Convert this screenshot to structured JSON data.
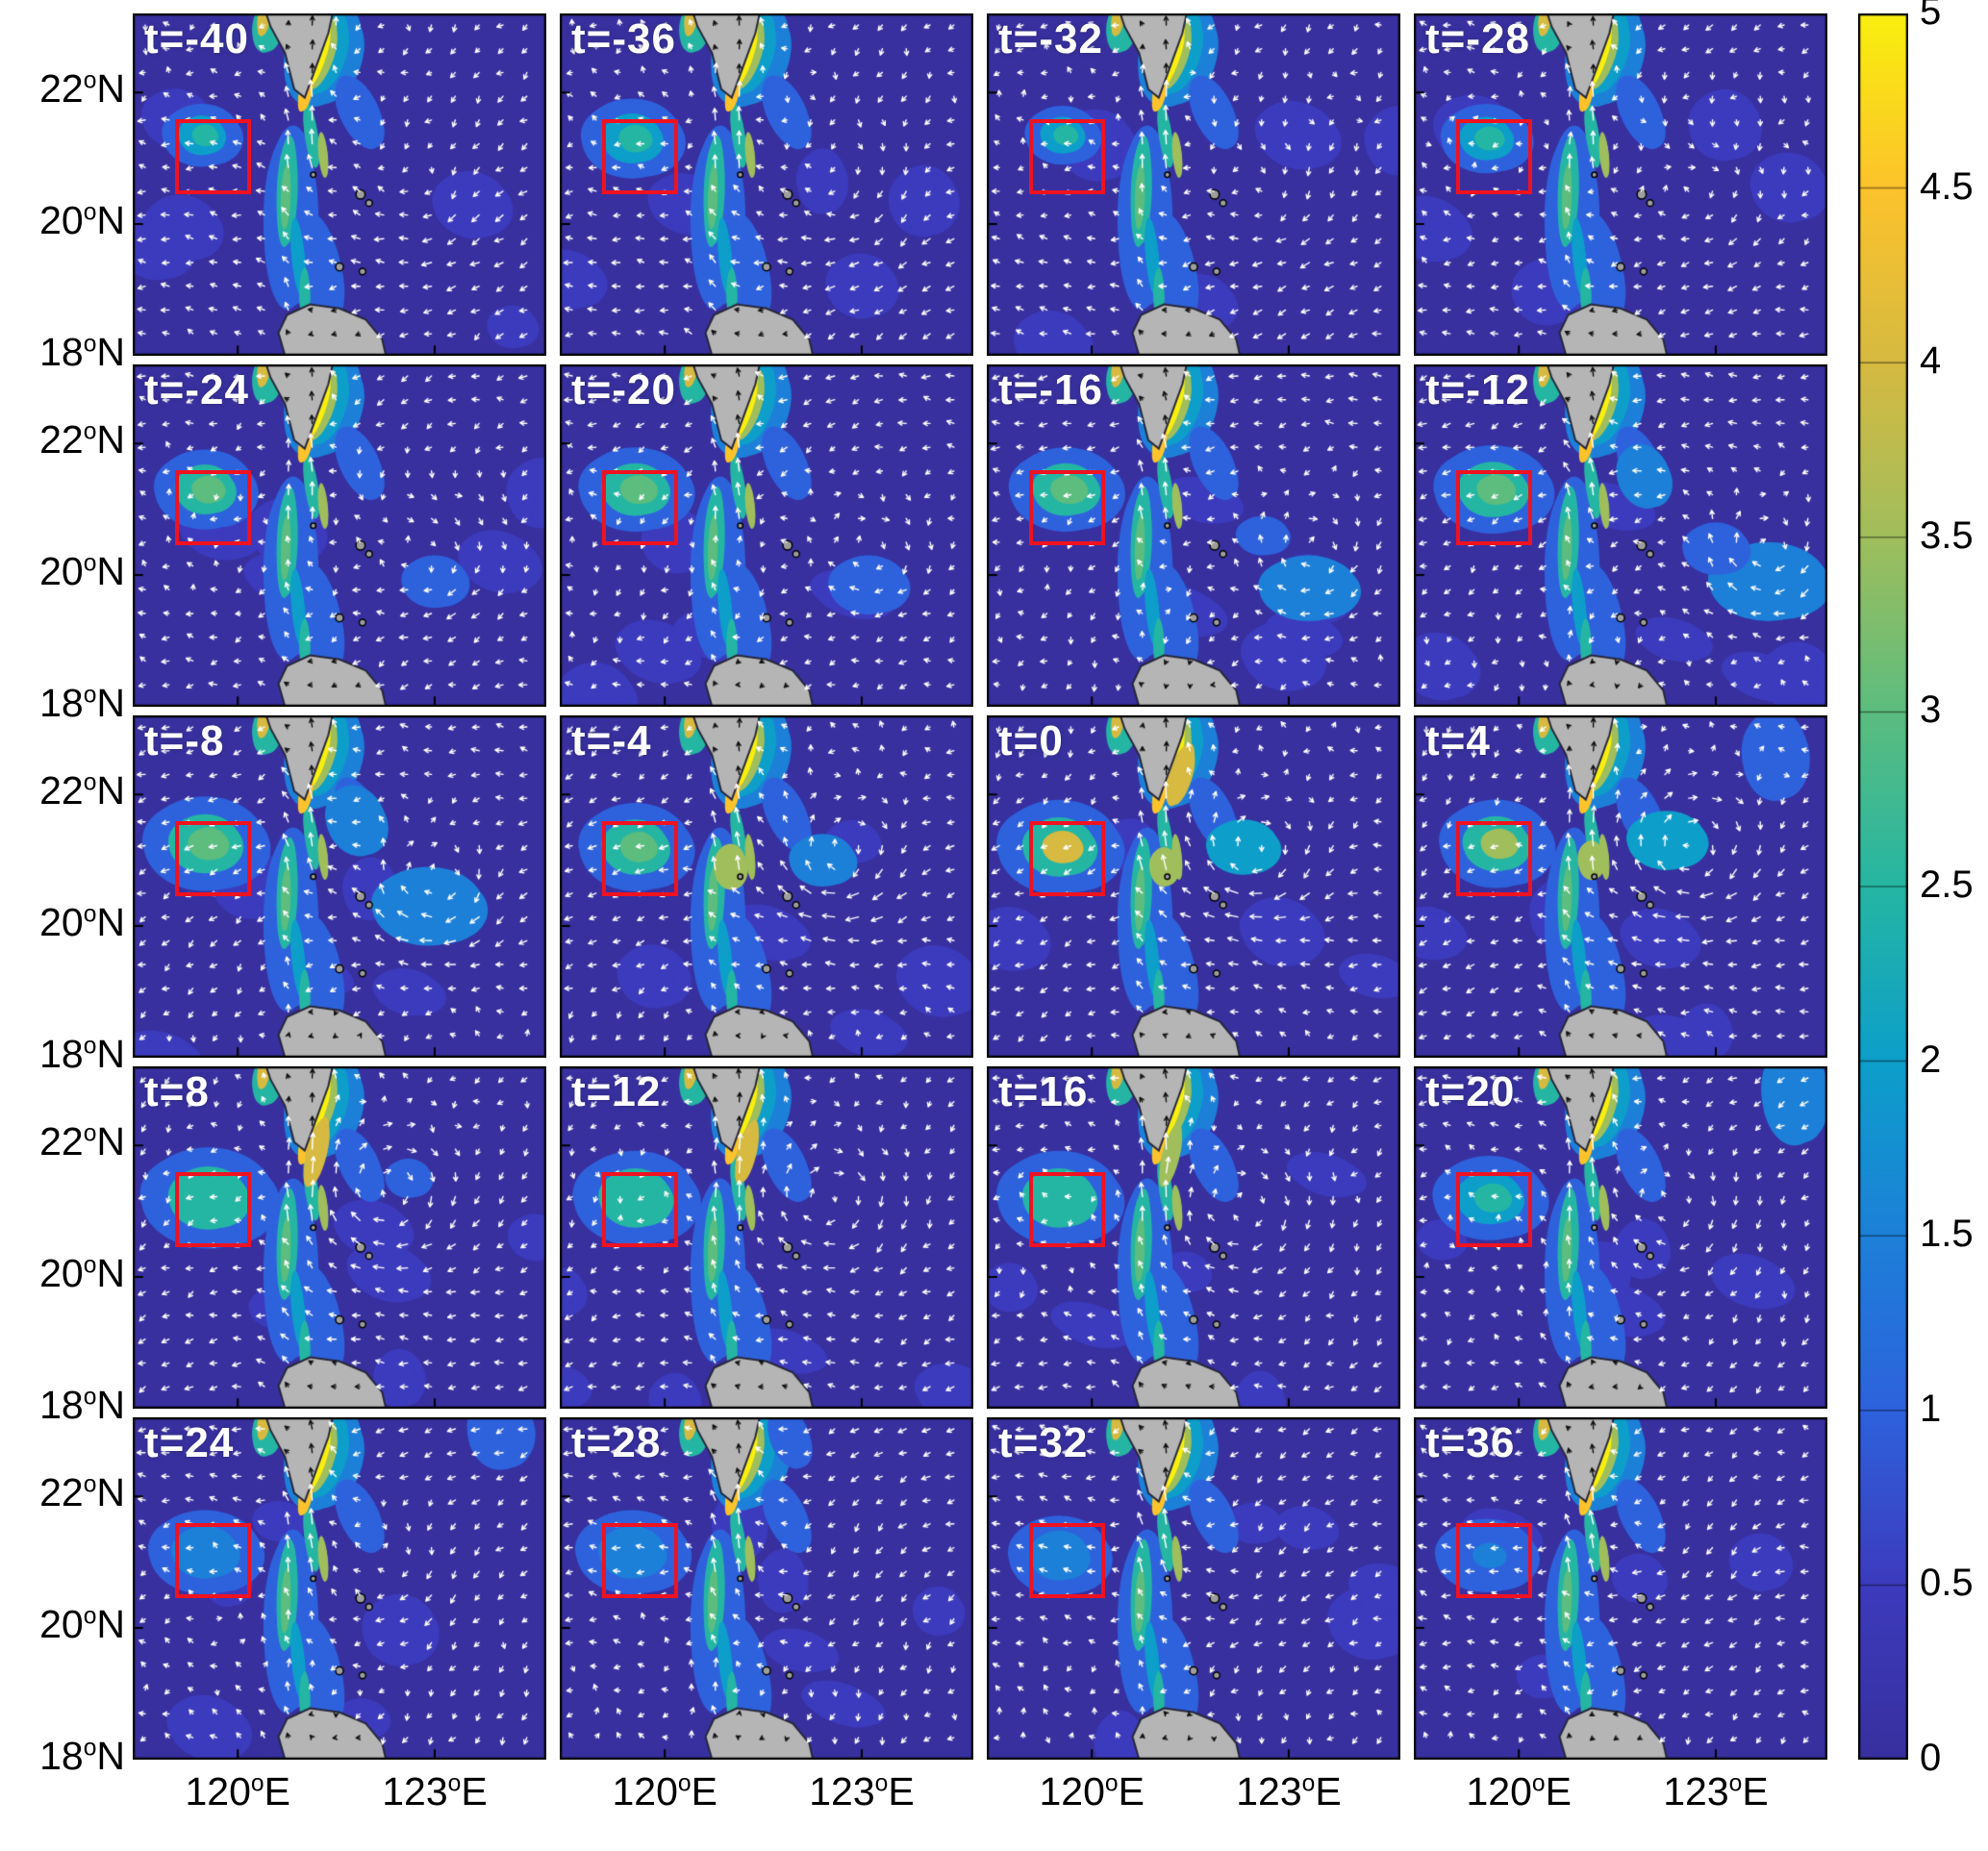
{
  "chart_data": {
    "type": "heatmap",
    "subtype": "map-contour-quiver-grid",
    "title": "",
    "rows": 5,
    "cols": 4,
    "values_estimated": true,
    "time_labels": [
      "t=-40",
      "t=-36",
      "t=-32",
      "t=-28",
      "t=-24",
      "t=-20",
      "t=-16",
      "t=-12",
      "t=-8",
      "t=-4",
      "t=0",
      "t=4",
      "t=8",
      "t=12",
      "t=16",
      "t=20",
      "t=24",
      "t=28",
      "t=32",
      "t=36"
    ],
    "x_ticks": [
      {
        "value": "120",
        "deg": "o",
        "dir": "E",
        "lon": 120
      },
      {
        "value": "123",
        "deg": "o",
        "dir": "E",
        "lon": 123
      }
    ],
    "y_ticks": [
      {
        "value": "22",
        "deg": "o",
        "dir": "N",
        "lat": 22
      },
      {
        "value": "20",
        "deg": "o",
        "dir": "N",
        "lat": 20
      },
      {
        "value": "18",
        "deg": "o",
        "dir": "N",
        "lat": 18
      }
    ],
    "map_extent": {
      "lon_min": 118.4,
      "lon_max": 124.7,
      "lat_min": 18.0,
      "lat_max": 23.2
    },
    "region_box": {
      "lon_min": 119.05,
      "lon_max": 120.2,
      "lat_min": 20.45,
      "lat_max": 21.6,
      "color": "#ef1220"
    },
    "colorbar": {
      "min": 0,
      "max": 5,
      "ticks": [
        "0",
        "0.5",
        "1",
        "1.5",
        "2",
        "2.5",
        "3",
        "3.5",
        "4",
        "4.5",
        "5"
      ],
      "tick_values": [
        0,
        0.5,
        1,
        1.5,
        2,
        2.5,
        3,
        3.5,
        4,
        4.5,
        5
      ],
      "stops": [
        [
          0,
          "#38309f"
        ],
        [
          0.5,
          "#3d3bbd"
        ],
        [
          1,
          "#2e62dd"
        ],
        [
          1.5,
          "#1d80d8"
        ],
        [
          2,
          "#0d9fca"
        ],
        [
          2.5,
          "#25b6a3"
        ],
        [
          3,
          "#5cbd7f"
        ],
        [
          3.5,
          "#a0be5c"
        ],
        [
          4,
          "#d6ba41"
        ],
        [
          4.5,
          "#fcc32c"
        ],
        [
          5,
          "#f9ef0e"
        ]
      ]
    },
    "land_color": "#b5b5b5",
    "land_edge_color": "#26263a",
    "arrow_color": "#ffffff",
    "land_arrow_color": "#111111",
    "land_polygons": {
      "taiwan": [
        [
          120.35,
          23.45
        ],
        [
          121.5,
          23.45
        ],
        [
          121.38,
          22.9
        ],
        [
          121.02,
          21.92
        ],
        [
          120.86,
          22.05
        ],
        [
          120.72,
          22.6
        ],
        [
          120.5,
          23.0
        ]
      ],
      "luzon": [
        [
          120.75,
          17.9
        ],
        [
          120.62,
          18.35
        ],
        [
          120.75,
          18.62
        ],
        [
          121.1,
          18.78
        ],
        [
          121.55,
          18.72
        ],
        [
          121.95,
          18.55
        ],
        [
          122.2,
          18.25
        ],
        [
          122.28,
          17.9
        ]
      ]
    },
    "islands": [
      [
        121.87,
        20.45,
        0.07
      ],
      [
        122.0,
        20.32,
        0.05
      ],
      [
        121.55,
        19.35,
        0.06
      ],
      [
        121.9,
        19.28,
        0.05
      ],
      [
        121.15,
        20.75,
        0.04
      ]
    ],
    "shared_features": [
      [
        120.8,
        20.1,
        0.4,
        1.4,
        2,
        1.1
      ],
      [
        121.25,
        19.35,
        0.32,
        0.85,
        -12,
        1.1
      ],
      [
        121.3,
        22.6,
        0.55,
        0.85,
        20,
        1.3
      ],
      [
        121.85,
        21.7,
        0.3,
        0.6,
        -25,
        1.1
      ],
      [
        120.45,
        23.0,
        0.22,
        0.4,
        10,
        2.3
      ],
      [
        121.28,
        22.62,
        0.34,
        0.7,
        20,
        2.2
      ],
      [
        120.75,
        20.5,
        0.15,
        0.85,
        3,
        2.3
      ],
      [
        120.92,
        19.5,
        0.1,
        0.6,
        -5,
        2.2
      ],
      [
        121.02,
        18.92,
        0.08,
        0.42,
        0,
        2.4
      ],
      [
        121.12,
        21.35,
        0.1,
        0.5,
        -8,
        2.4
      ],
      [
        121.24,
        22.58,
        0.2,
        0.58,
        20,
        3.4
      ],
      [
        120.4,
        23.15,
        0.09,
        0.3,
        10,
        4.2
      ],
      [
        121.3,
        21.05,
        0.07,
        0.35,
        -5,
        3.7
      ],
      [
        120.73,
        20.42,
        0.07,
        0.5,
        3,
        3.1
      ],
      [
        121.21,
        22.55,
        0.11,
        0.52,
        20,
        4.8
      ],
      [
        121.03,
        22.0,
        0.09,
        0.3,
        14,
        4.6
      ]
    ],
    "panels": [
      {
        "t": "t=-40",
        "box": [
          119.45,
          21.35,
          0.35,
          0.3
        ],
        "bv": 2.2,
        "cv": 2.5,
        "vortex": [
          122.8,
          20.3,
          0.35
        ],
        "extra": []
      },
      {
        "t": "t=-36",
        "box": [
          119.5,
          21.3,
          0.45,
          0.38
        ],
        "bv": 2.2,
        "cv": 2.6,
        "vortex": [
          122.8,
          20.3,
          0.35
        ],
        "extra": []
      },
      {
        "t": "t=-32",
        "box": [
          119.55,
          21.35,
          0.33,
          0.28
        ],
        "bv": 2.2,
        "cv": 2.4,
        "vortex": [
          122.9,
          20.3,
          0.35
        ],
        "extra": []
      },
      {
        "t": "t=-28",
        "box": [
          119.5,
          21.3,
          0.4,
          0.33
        ],
        "bv": 2.2,
        "cv": 2.6,
        "vortex": [
          122.9,
          20.3,
          0.4
        ],
        "extra": []
      },
      {
        "t": "t=-24",
        "box": [
          119.5,
          21.3,
          0.45,
          0.38
        ],
        "bv": 2.3,
        "cv": 2.8,
        "vortex": [
          123.0,
          20.2,
          0.5
        ],
        "extra": [
          [
            123.0,
            19.9,
            0.5,
            0.4,
            0,
            1.2
          ]
        ]
      },
      {
        "t": "t=-20",
        "box": [
          119.55,
          21.3,
          0.5,
          0.4
        ],
        "bv": 2.3,
        "cv": 3.0,
        "vortex": [
          123.2,
          20.3,
          0.6
        ],
        "extra": [
          [
            123.1,
            19.85,
            0.6,
            0.45,
            0,
            1.2
          ]
        ]
      },
      {
        "t": "t=-16",
        "box": [
          119.6,
          21.3,
          0.5,
          0.4
        ],
        "bv": 2.3,
        "cv": 3.0,
        "vortex": [
          123.4,
          20.3,
          0.8
        ],
        "extra": [
          [
            123.3,
            19.8,
            0.75,
            0.5,
            0,
            1.3
          ],
          [
            122.6,
            20.6,
            0.4,
            0.3,
            0,
            1.2
          ]
        ]
      },
      {
        "t": "t=-12",
        "box": [
          119.6,
          21.3,
          0.52,
          0.42
        ],
        "bv": 2.4,
        "cv": 3.2,
        "vortex": [
          123.8,
          20.3,
          0.9
        ],
        "extra": [
          [
            123.8,
            19.9,
            0.9,
            0.6,
            0,
            1.4
          ],
          [
            123.0,
            20.4,
            0.5,
            0.4,
            0,
            1.2
          ],
          [
            121.9,
            21.5,
            0.4,
            0.5,
            -20,
            1.3
          ]
        ]
      },
      {
        "t": "t=-8",
        "box": [
          119.5,
          21.25,
          0.55,
          0.45
        ],
        "bv": 2.4,
        "cv": 3.2,
        "vortex": [
          123.0,
          20.5,
          1.0
        ],
        "extra": [
          [
            122.9,
            20.3,
            0.85,
            0.6,
            0,
            1.4
          ],
          [
            121.8,
            21.6,
            0.45,
            0.55,
            -20,
            1.3
          ]
        ]
      },
      {
        "t": "t=-4",
        "box": [
          119.55,
          21.2,
          0.5,
          0.42
        ],
        "bv": 2.4,
        "cv": 3.0,
        "vortex": [
          122.7,
          20.9,
          1.1
        ],
        "extra": [
          [
            122.4,
            21.0,
            0.5,
            0.4,
            0,
            1.3
          ],
          [
            121.0,
            20.9,
            0.25,
            0.35,
            0,
            3.6
          ]
        ]
      },
      {
        "t": "t=0",
        "box": [
          119.5,
          21.2,
          0.55,
          0.45
        ],
        "bv": 2.4,
        "cv": 3.9,
        "vortex": [
          122.5,
          21.0,
          1.1
        ],
        "extra": [
          [
            122.3,
            21.2,
            0.55,
            0.42,
            0,
            2.2
          ],
          [
            121.35,
            22.3,
            0.16,
            0.5,
            18,
            4.0
          ],
          [
            121.1,
            20.9,
            0.22,
            0.3,
            0,
            3.7
          ]
        ]
      },
      {
        "t": "t=4",
        "box": [
          119.65,
          21.25,
          0.5,
          0.42
        ],
        "bv": 2.4,
        "cv": 3.7,
        "vortex": [
          122.6,
          21.1,
          1.1
        ],
        "extra": [
          [
            122.25,
            21.3,
            0.6,
            0.45,
            0,
            2.2
          ],
          [
            121.1,
            21.0,
            0.2,
            0.3,
            0,
            3.6
          ],
          [
            123.9,
            22.6,
            0.5,
            0.7,
            0,
            1.2
          ]
        ]
      },
      {
        "t": "t=8",
        "box": [
          119.55,
          21.2,
          0.6,
          0.48
        ],
        "bv": 2.3,
        "cv": 2.5,
        "vortex": [
          122.3,
          21.2,
          1.0
        ],
        "extra": [
          [
            121.2,
            21.9,
            0.14,
            0.55,
            15,
            3.9
          ],
          [
            122.6,
            21.5,
            0.35,
            0.3,
            0,
            1.2
          ]
        ]
      },
      {
        "t": "t=12",
        "box": [
          119.55,
          21.2,
          0.55,
          0.45
        ],
        "bv": 2.3,
        "cv": 2.4,
        "vortex": [
          122.5,
          21.1,
          0.9
        ],
        "extra": [
          [
            121.25,
            21.9,
            0.13,
            0.5,
            15,
            3.8
          ]
        ]
      },
      {
        "t": "t=16",
        "box": [
          119.5,
          21.2,
          0.55,
          0.45
        ],
        "bv": 2.3,
        "cv": 2.4,
        "vortex": [
          122.3,
          21.0,
          0.8
        ],
        "extra": [
          [
            121.2,
            21.85,
            0.12,
            0.5,
            15,
            3.7
          ]
        ]
      },
      {
        "t": "t=20",
        "box": [
          119.55,
          21.2,
          0.5,
          0.4
        ],
        "bv": 2.2,
        "cv": 2.3,
        "vortex": [
          122.4,
          21.0,
          0.6
        ],
        "extra": [
          [
            124.2,
            22.8,
            0.5,
            0.8,
            0,
            1.3
          ]
        ]
      },
      {
        "t": "t=24",
        "box": [
          119.5,
          21.15,
          0.5,
          0.4
        ],
        "bv": 1.5,
        "cv": 1.7,
        "vortex": [
          122.4,
          20.9,
          0.4
        ],
        "extra": [
          [
            124.0,
            23.0,
            0.5,
            0.6,
            0,
            1.2
          ]
        ]
      },
      {
        "t": "t=28",
        "box": [
          119.5,
          21.15,
          0.5,
          0.4
        ],
        "bv": 1.4,
        "cv": 1.6,
        "vortex": [
          122.4,
          20.9,
          0.3
        ],
        "extra": [
          [
            121.9,
            22.9,
            0.3,
            0.5,
            -20,
            1.2
          ]
        ]
      },
      {
        "t": "t=32",
        "box": [
          119.5,
          21.1,
          0.45,
          0.38
        ],
        "bv": 1.3,
        "cv": 1.5,
        "vortex": [
          122.4,
          20.9,
          0.3
        ],
        "extra": []
      },
      {
        "t": "t=36",
        "box": [
          119.5,
          21.1,
          0.45,
          0.35
        ],
        "bv": 1.2,
        "cv": 1.4,
        "vortex": [
          122.4,
          20.9,
          0.3
        ],
        "extra": []
      }
    ]
  }
}
